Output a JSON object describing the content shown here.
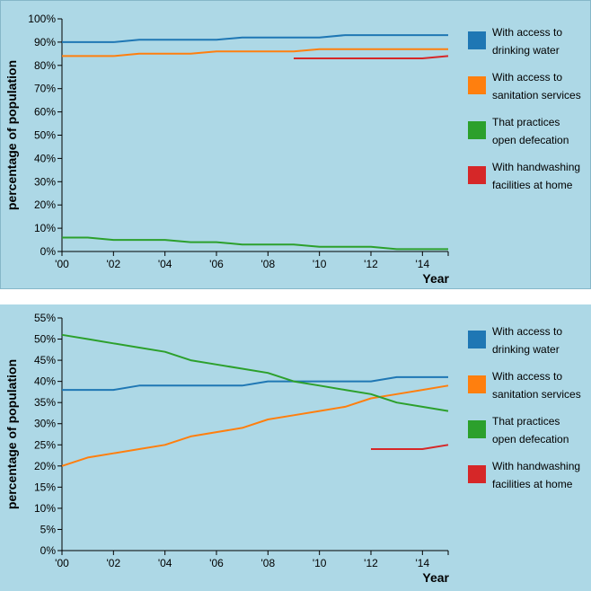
{
  "chart_data": [
    {
      "type": "line",
      "xlabel": "Year",
      "ylabel": "percentage of population",
      "xlim": [
        2000,
        2015
      ],
      "ylim": [
        0,
        100
      ],
      "x_ticks": [
        "'00",
        "'02",
        "'04",
        "'06",
        "'08",
        "'10",
        "'12",
        "'14"
      ],
      "y_ticks": [
        "0%",
        "10%",
        "20%",
        "30%",
        "40%",
        "50%",
        "60%",
        "70%",
        "80%",
        "90%",
        "100%"
      ],
      "grid": false,
      "legend_position": "right",
      "series": [
        {
          "name": "With access to drinking water",
          "legend_lines": [
            "With access to",
            "drinking water"
          ],
          "color": "#1f77b4",
          "x": [
            2000,
            2001,
            2002,
            2003,
            2004,
            2005,
            2006,
            2007,
            2008,
            2009,
            2010,
            2011,
            2012,
            2013,
            2014,
            2015
          ],
          "values": [
            90,
            90,
            90,
            91,
            91,
            91,
            91,
            92,
            92,
            92,
            92,
            93,
            93,
            93,
            93,
            93
          ]
        },
        {
          "name": "With access to sanitation services",
          "legend_lines": [
            "With access to",
            "sanitation services"
          ],
          "color": "#ff7f0e",
          "x": [
            2000,
            2001,
            2002,
            2003,
            2004,
            2005,
            2006,
            2007,
            2008,
            2009,
            2010,
            2011,
            2012,
            2013,
            2014,
            2015
          ],
          "values": [
            84,
            84,
            84,
            85,
            85,
            85,
            86,
            86,
            86,
            86,
            87,
            87,
            87,
            87,
            87,
            87
          ]
        },
        {
          "name": "That practices open defecation",
          "legend_lines": [
            "That practices",
            "open defecation"
          ],
          "color": "#2ca02c",
          "x": [
            2000,
            2001,
            2002,
            2003,
            2004,
            2005,
            2006,
            2007,
            2008,
            2009,
            2010,
            2011,
            2012,
            2013,
            2014,
            2015
          ],
          "values": [
            6,
            6,
            5,
            5,
            5,
            4,
            4,
            3,
            3,
            3,
            2,
            2,
            2,
            1,
            1,
            1
          ]
        },
        {
          "name": "With handwashing facilities at home",
          "legend_lines": [
            "With handwashing",
            "facilities at home"
          ],
          "color": "#d62728",
          "x": [
            2009,
            2010,
            2011,
            2012,
            2013,
            2014,
            2015
          ],
          "values": [
            83,
            83,
            83,
            83,
            83,
            83,
            84
          ]
        }
      ]
    },
    {
      "type": "line",
      "xlabel": "Year",
      "ylabel": "percentage of population",
      "xlim": [
        2000,
        2015
      ],
      "ylim": [
        0,
        55
      ],
      "x_ticks": [
        "'00",
        "'02",
        "'04",
        "'06",
        "'08",
        "'10",
        "'12",
        "'14"
      ],
      "y_ticks": [
        "0%",
        "5%",
        "10%",
        "15%",
        "20%",
        "25%",
        "30%",
        "35%",
        "40%",
        "45%",
        "50%",
        "55%"
      ],
      "grid": false,
      "legend_position": "right",
      "series": [
        {
          "name": "With access to drinking water",
          "legend_lines": [
            "With access to",
            "drinking water"
          ],
          "color": "#1f77b4",
          "x": [
            2000,
            2001,
            2002,
            2003,
            2004,
            2005,
            2006,
            2007,
            2008,
            2009,
            2010,
            2011,
            2012,
            2013,
            2014,
            2015
          ],
          "values": [
            38,
            38,
            38,
            39,
            39,
            39,
            39,
            39,
            40,
            40,
            40,
            40,
            40,
            41,
            41,
            41
          ]
        },
        {
          "name": "With access to sanitation services",
          "legend_lines": [
            "With access to",
            "sanitation services"
          ],
          "color": "#ff7f0e",
          "x": [
            2000,
            2001,
            2002,
            2003,
            2004,
            2005,
            2006,
            2007,
            2008,
            2009,
            2010,
            2011,
            2012,
            2013,
            2014,
            2015
          ],
          "values": [
            20,
            22,
            23,
            24,
            25,
            27,
            28,
            29,
            31,
            32,
            33,
            34,
            36,
            37,
            38,
            39
          ]
        },
        {
          "name": "That practices open defecation",
          "legend_lines": [
            "That practices",
            "open defecation"
          ],
          "color": "#2ca02c",
          "x": [
            2000,
            2001,
            2002,
            2003,
            2004,
            2005,
            2006,
            2007,
            2008,
            2009,
            2010,
            2011,
            2012,
            2013,
            2014,
            2015
          ],
          "values": [
            51,
            50,
            49,
            48,
            47,
            45,
            44,
            43,
            42,
            40,
            39,
            38,
            37,
            35,
            34,
            33
          ]
        },
        {
          "name": "With handwashing facilities at home",
          "legend_lines": [
            "With handwashing",
            "facilities at home"
          ],
          "color": "#d62728",
          "x": [
            2012,
            2013,
            2014,
            2015
          ],
          "values": [
            24,
            24,
            24,
            25
          ]
        }
      ]
    }
  ]
}
